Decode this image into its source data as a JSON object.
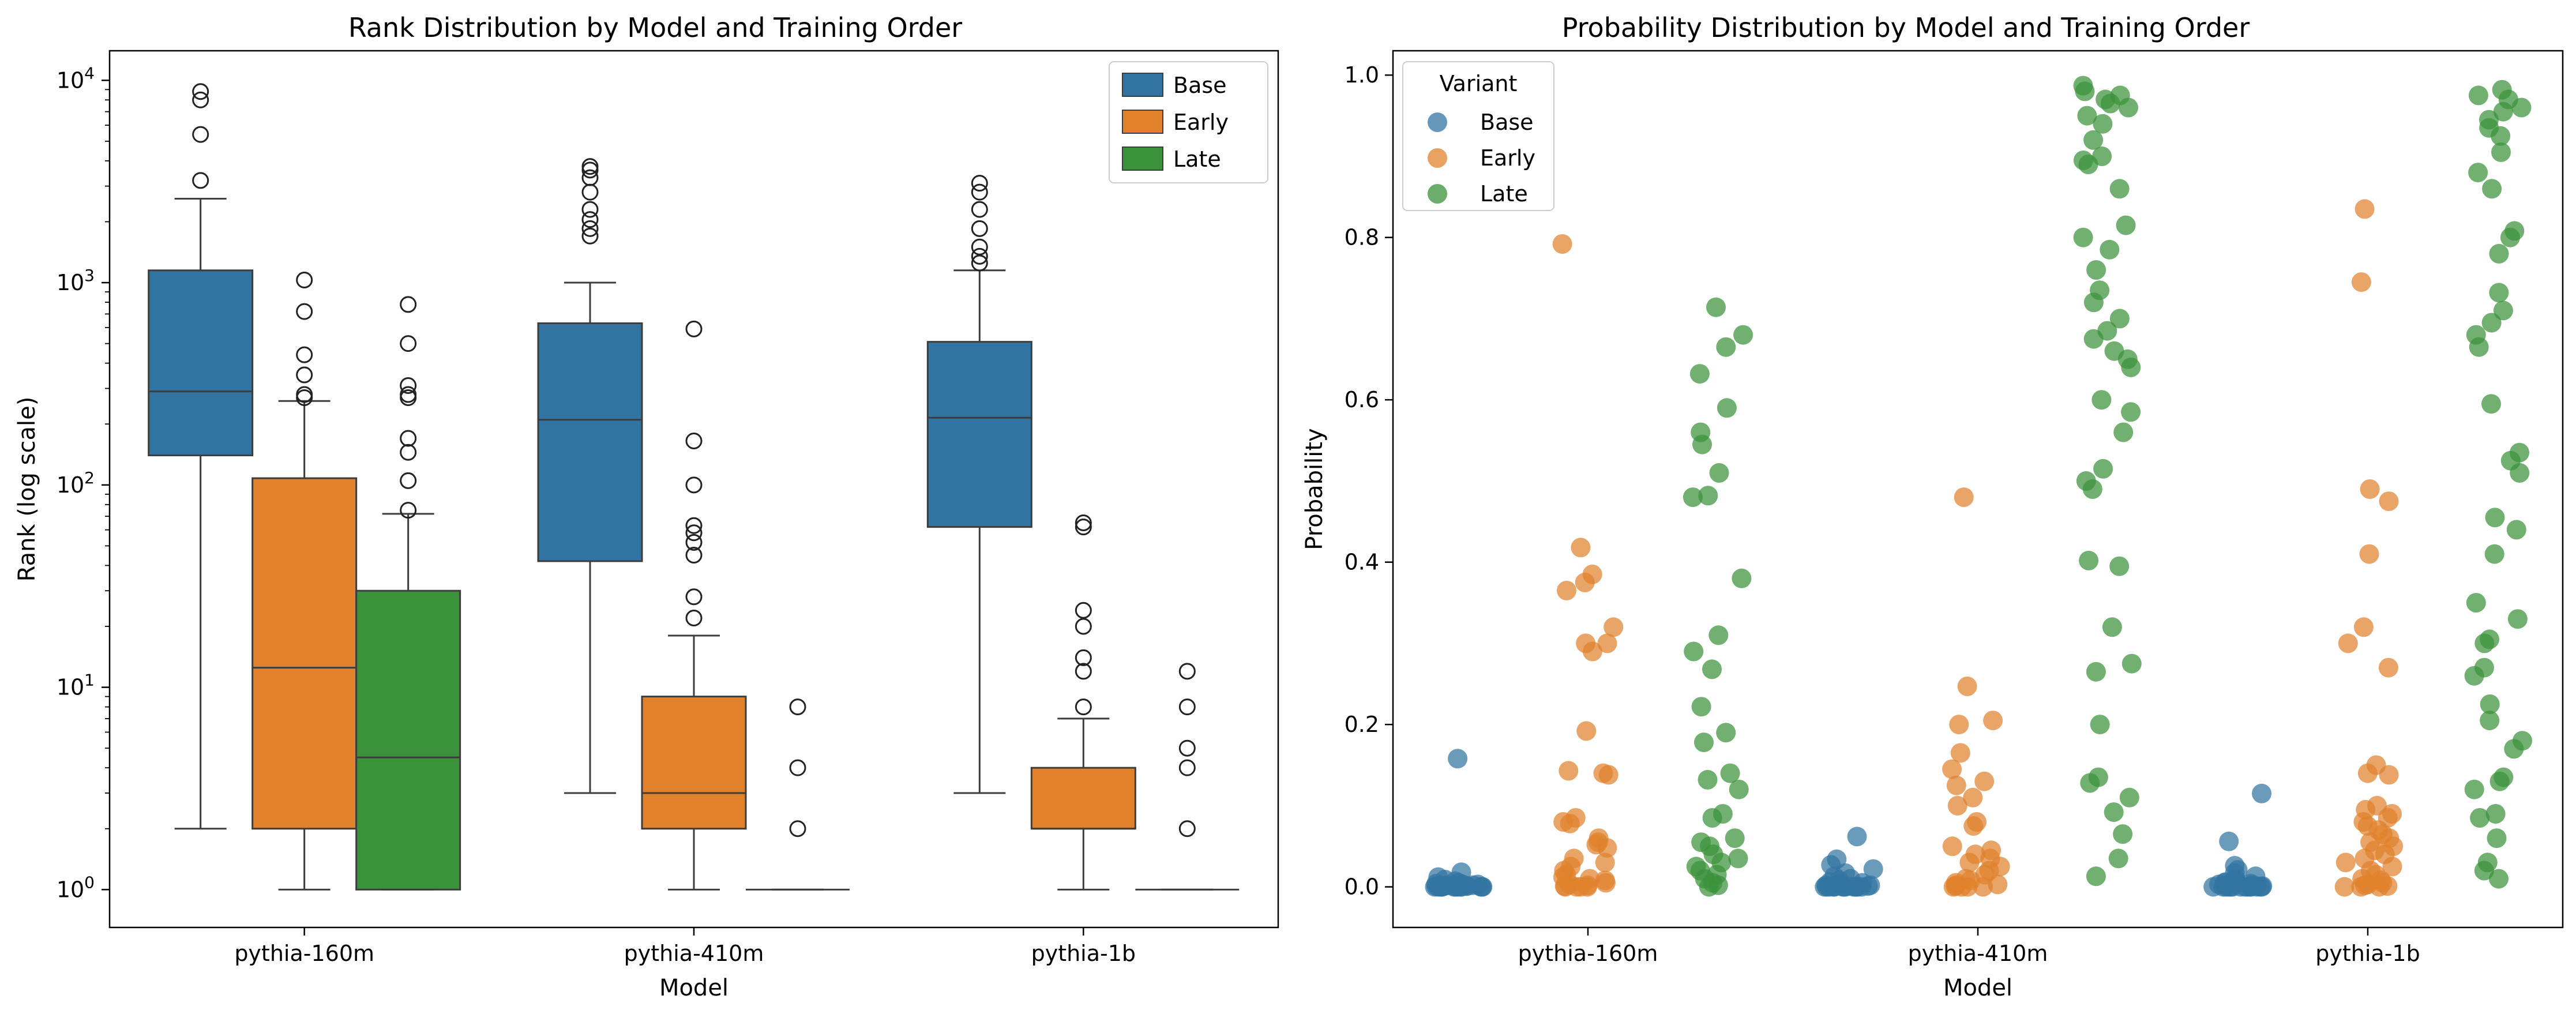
{
  "chart_data": [
    {
      "type": "box",
      "title": "Rank Distribution by Model and Training Order",
      "xlabel": "Model",
      "ylabel": "Rank (log scale)",
      "yscale": "log",
      "ylim": [
        0.65,
        14000
      ],
      "yticks": [
        {
          "value": 1,
          "base": "10",
          "exp": "0"
        },
        {
          "value": 10,
          "base": "10",
          "exp": "1"
        },
        {
          "value": 100,
          "base": "10",
          "exp": "2"
        },
        {
          "value": 1000,
          "base": "10",
          "exp": "3"
        },
        {
          "value": 10000,
          "base": "10",
          "exp": "4"
        }
      ],
      "categories": [
        "pythia-160m",
        "pythia-410m",
        "pythia-1b"
      ],
      "legend": {
        "position": "upper right",
        "entries": [
          "Base",
          "Early",
          "Late"
        ]
      },
      "series": [
        {
          "name": "Base",
          "color": "#3274a1",
          "boxes": [
            {
              "whislo": 2,
              "q1": 140,
              "med": 290,
              "q3": 1150,
              "whishi": 2600,
              "fliers": [
                3200,
                5400,
                8000,
                8800
              ]
            },
            {
              "whislo": 3,
              "q1": 42,
              "med": 210,
              "q3": 630,
              "whishi": 1000,
              "fliers": [
                1700,
                1850,
                2050,
                2300,
                2800,
                3300,
                3600,
                3750
              ]
            },
            {
              "whislo": 3,
              "q1": 62,
              "med": 215,
              "q3": 510,
              "whishi": 1150,
              "fliers": [
                1250,
                1350,
                1500,
                1850,
                2300,
                2800,
                3100
              ]
            }
          ]
        },
        {
          "name": "Early",
          "color": "#e1812c",
          "boxes": [
            {
              "whislo": 1,
              "q1": 2,
              "med": 12.5,
              "q3": 108,
              "whishi": 260,
              "fliers": [
                270,
                280,
                350,
                440,
                720,
                1030
              ]
            },
            {
              "whislo": 1,
              "q1": 2,
              "med": 3,
              "q3": 9,
              "whishi": 18,
              "fliers": [
                22,
                28,
                45,
                52,
                58,
                63,
                100,
                165,
                590
              ]
            },
            {
              "whislo": 1,
              "q1": 2,
              "med": 2,
              "q3": 4,
              "whishi": 7,
              "fliers": [
                8,
                12,
                14,
                20,
                24,
                62,
                65
              ]
            }
          ]
        },
        {
          "name": "Late",
          "color": "#3a923a",
          "boxes": [
            {
              "whislo": 1,
              "q1": 1,
              "med": 4.5,
              "q3": 30,
              "whishi": 72,
              "fliers": [
                75,
                105,
                145,
                170,
                270,
                280,
                310,
                500,
                780
              ]
            },
            {
              "whislo": 1,
              "q1": 1,
              "med": 1,
              "q3": 1,
              "whishi": 1,
              "fliers": [
                2,
                4,
                8
              ]
            },
            {
              "whislo": 1,
              "q1": 1,
              "med": 1,
              "q3": 1,
              "whishi": 1,
              "fliers": [
                2,
                4,
                5,
                8,
                12
              ]
            }
          ]
        }
      ]
    },
    {
      "type": "scatter",
      "title": "Probability Distribution by Model and Training Order",
      "xlabel": "Model",
      "ylabel": "Probability",
      "ylim": [
        -0.05,
        1.03
      ],
      "yticks": [
        "0.0",
        "0.2",
        "0.4",
        "0.6",
        "0.8",
        "1.0"
      ],
      "categories": [
        "pythia-160m",
        "pythia-410m",
        "pythia-1b"
      ],
      "legend": {
        "position": "upper left",
        "title": "Variant",
        "entries": [
          "Base",
          "Early",
          "Late"
        ]
      },
      "series": [
        {
          "name": "Base",
          "color": "#3274a1",
          "groups": [
            [
              0.158,
              0.018,
              0.012,
              0.009,
              0.007,
              0.005,
              0.004,
              0.003,
              0.003,
              0.002,
              0.002,
              0.002,
              0.001,
              0.001,
              0.001,
              0.001,
              0.001,
              0,
              0,
              0,
              0,
              0,
              0,
              0,
              0,
              0,
              0,
              0,
              0,
              0
            ],
            [
              0.062,
              0.034,
              0.027,
              0.022,
              0.017,
              0.013,
              0.01,
              0.008,
              0.006,
              0.005,
              0.004,
              0.003,
              0.002,
              0.002,
              0.001,
              0.001,
              0.001,
              0,
              0,
              0,
              0,
              0,
              0,
              0,
              0,
              0,
              0,
              0,
              0,
              0
            ],
            [
              0.115,
              0.056,
              0.026,
              0.021,
              0.017,
              0.013,
              0.01,
              0.008,
              0.006,
              0.005,
              0.004,
              0.003,
              0.002,
              0.002,
              0.001,
              0.001,
              0,
              0,
              0,
              0,
              0,
              0,
              0,
              0,
              0,
              0,
              0,
              0,
              0,
              0
            ]
          ]
        },
        {
          "name": "Early",
          "color": "#e1812c",
          "groups": [
            [
              0.792,
              0.418,
              0.385,
              0.375,
              0.365,
              0.32,
              0.3,
              0.3,
              0.29,
              0.192,
              0.143,
              0.14,
              0.138,
              0.085,
              0.08,
              0.078,
              0.06,
              0.055,
              0.052,
              0.048,
              0.035,
              0.03,
              0.025,
              0.02,
              0.015,
              0.012,
              0.01,
              0.008,
              0.005,
              0.003,
              0.002,
              0.001,
              0,
              0,
              0,
              0
            ],
            [
              0.48,
              0.247,
              0.205,
              0.2,
              0.165,
              0.145,
              0.13,
              0.125,
              0.11,
              0.1,
              0.08,
              0.075,
              0.05,
              0.045,
              0.04,
              0.035,
              0.03,
              0.025,
              0.02,
              0.015,
              0.01,
              0.008,
              0.005,
              0.003,
              0.002,
              0.001,
              0,
              0,
              0,
              0
            ],
            [
              0.835,
              0.745,
              0.49,
              0.475,
              0.41,
              0.32,
              0.3,
              0.27,
              0.15,
              0.14,
              0.138,
              0.1,
              0.095,
              0.09,
              0.085,
              0.08,
              0.075,
              0.07,
              0.065,
              0.06,
              0.055,
              0.05,
              0.045,
              0.04,
              0.035,
              0.03,
              0.025,
              0.02,
              0.015,
              0.01,
              0.008,
              0.005,
              0.003,
              0.002,
              0.001,
              0,
              0,
              0
            ]
          ]
        },
        {
          "name": "Late",
          "color": "#3a923a",
          "groups": [
            [
              0.714,
              0.68,
              0.665,
              0.632,
              0.59,
              0.56,
              0.545,
              0.51,
              0.482,
              0.48,
              0.38,
              0.31,
              0.29,
              0.268,
              0.222,
              0.19,
              0.178,
              0.14,
              0.132,
              0.12,
              0.09,
              0.085,
              0.06,
              0.055,
              0.05,
              0.04,
              0.035,
              0.03,
              0.025,
              0.02,
              0.015,
              0.01,
              0.005,
              0.002,
              0
            ],
            [
              0.987,
              0.98,
              0.975,
              0.97,
              0.965,
              0.96,
              0.95,
              0.94,
              0.92,
              0.9,
              0.895,
              0.89,
              0.86,
              0.815,
              0.8,
              0.785,
              0.76,
              0.735,
              0.72,
              0.7,
              0.685,
              0.675,
              0.66,
              0.65,
              0.64,
              0.6,
              0.585,
              0.56,
              0.515,
              0.5,
              0.49,
              0.402,
              0.395,
              0.32,
              0.275,
              0.265,
              0.2,
              0.135,
              0.128,
              0.11,
              0.092,
              0.065,
              0.035,
              0.013
            ],
            [
              0.982,
              0.975,
              0.97,
              0.96,
              0.955,
              0.945,
              0.935,
              0.925,
              0.905,
              0.88,
              0.86,
              0.808,
              0.8,
              0.78,
              0.732,
              0.71,
              0.695,
              0.68,
              0.665,
              0.595,
              0.535,
              0.525,
              0.51,
              0.455,
              0.44,
              0.41,
              0.35,
              0.33,
              0.305,
              0.3,
              0.27,
              0.26,
              0.225,
              0.205,
              0.18,
              0.17,
              0.135,
              0.13,
              0.12,
              0.09,
              0.085,
              0.06,
              0.03,
              0.02,
              0.01
            ]
          ]
        }
      ]
    }
  ]
}
